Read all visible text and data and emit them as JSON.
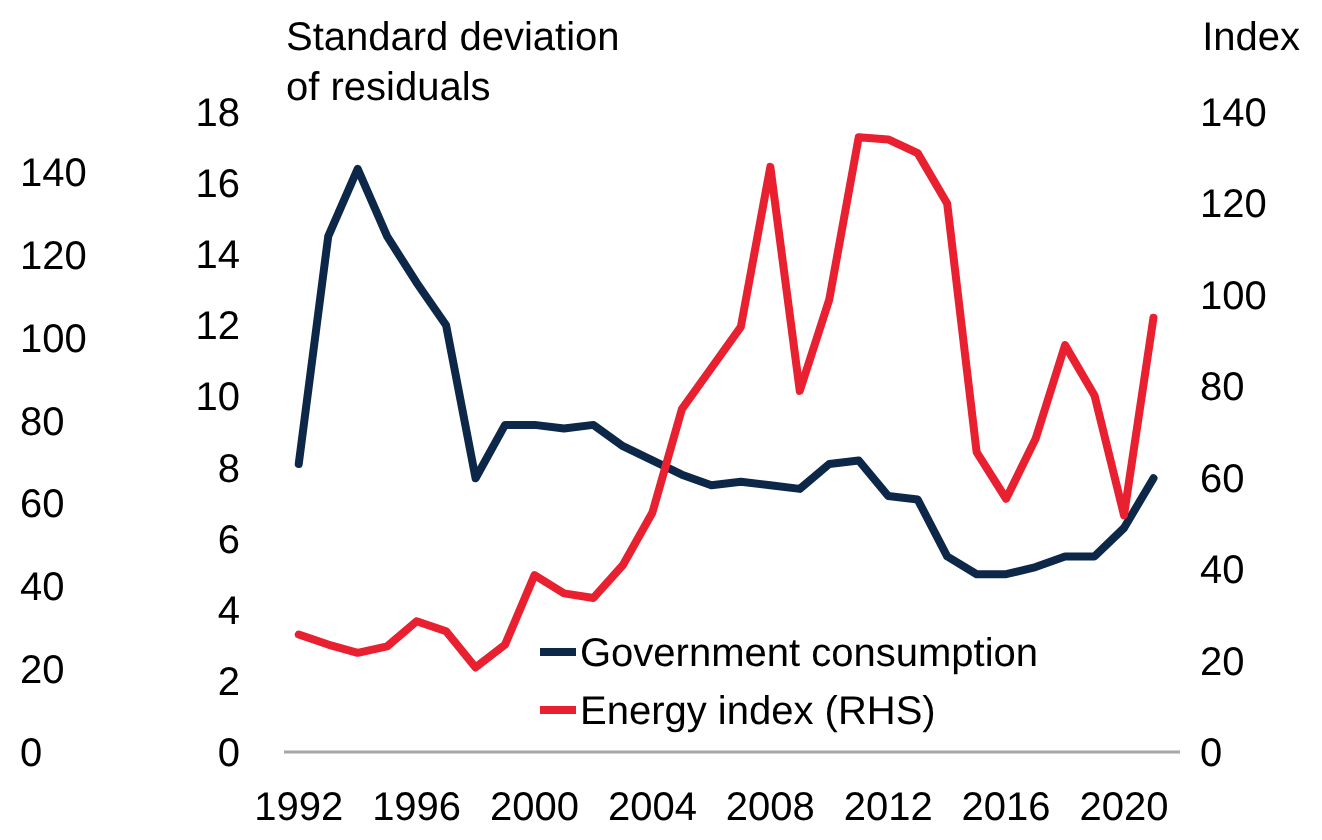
{
  "chart_data": {
    "type": "line",
    "ylabel": "Standard deviation\nof residuals",
    "y2label": "Index",
    "x": [
      1992,
      1993,
      1994,
      1995,
      1996,
      1997,
      1998,
      1999,
      2000,
      2001,
      2002,
      2003,
      2004,
      2005,
      2006,
      2007,
      2008,
      2009,
      2010,
      2011,
      2012,
      2013,
      2014,
      2015,
      2016,
      2017,
      2018,
      2019,
      2020,
      2021
    ],
    "series": [
      {
        "name": "Government consumption",
        "color": "#0d2748",
        "values": [
          8.1,
          14.5,
          16.4,
          14.5,
          13.2,
          12.0,
          7.7,
          9.2,
          9.2,
          9.1,
          9.2,
          8.6,
          8.2,
          7.8,
          7.5,
          7.6,
          7.5,
          7.4,
          8.1,
          8.2,
          7.2,
          7.1,
          5.5,
          5.0,
          5.0,
          5.2,
          5.5,
          5.5,
          6.3,
          7.7
        ]
      },
      {
        "name": "Energy index (RHS)",
        "color": "#e8202f",
        "axis": "y2",
        "values": [
          25.7,
          23.5,
          21.7,
          23.1,
          28.6,
          26.4,
          18.5,
          23.5,
          38.7,
          34.7,
          33.7,
          40.9,
          52.4,
          75,
          84,
          93,
          128,
          79,
          99,
          134.5,
          134,
          131,
          120,
          65.6,
          55.4,
          68.5,
          89,
          78,
          51.8,
          95
        ]
      }
    ],
    "xlim": [
      1991.5,
      2021.9
    ],
    "xticks": [
      1992,
      1996,
      2000,
      2004,
      2008,
      2012,
      2016,
      2020
    ],
    "ylim": [
      0,
      18
    ],
    "yticks": [
      0,
      2,
      4,
      6,
      8,
      10,
      12,
      14,
      16,
      18
    ],
    "y2lim": [
      0,
      140
    ],
    "y2ticks": [
      0,
      20,
      40,
      60,
      80,
      100,
      120,
      140
    ],
    "y3lim": [
      0,
      140
    ],
    "y3ticks": [
      0,
      20,
      40,
      60,
      80,
      100,
      120,
      140
    ],
    "legend": "bottom right",
    "grid": false,
    "line_style": "solid",
    "marker": "none"
  }
}
